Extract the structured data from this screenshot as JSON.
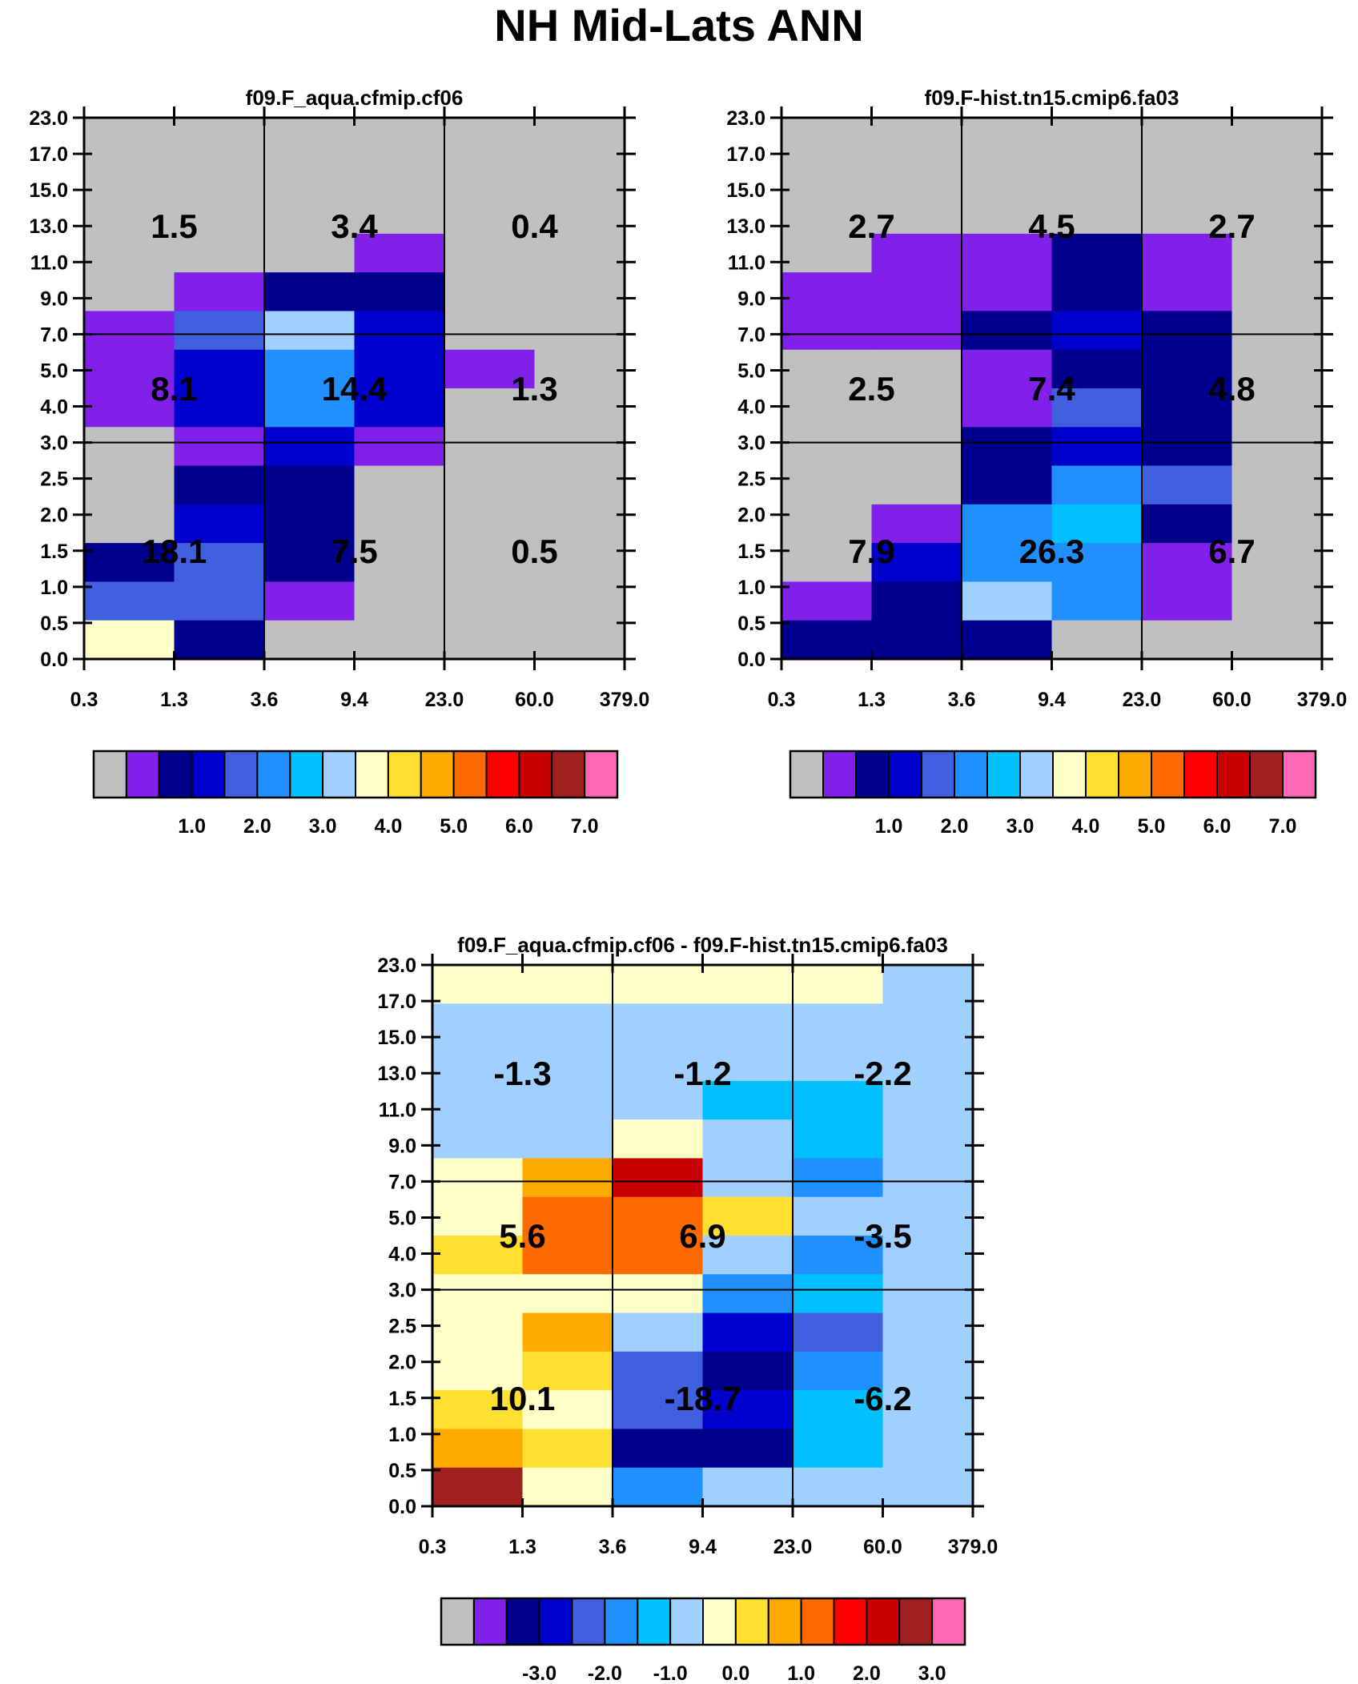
{
  "page_title": "NH Mid-Lats ANN",
  "colors": {
    "palette": [
      "#c0c0c0",
      "#8020e8",
      "#00008c",
      "#0000cc",
      "#4060e0",
      "#2090ff",
      "#00c0ff",
      "#a0d0ff",
      "#ffffc8",
      "#ffe030",
      "#ffaa00",
      "#ff6a00",
      "#ff0000",
      "#c80000",
      "#a02020",
      "#ff69b4"
    ],
    "line": "#000000"
  },
  "chart_data": [
    {
      "type": "heatmap",
      "title": "f09.F_aqua.cfmip.cf06",
      "xlabel": "",
      "ylabel": "",
      "x_tick_labels": [
        "0.3",
        "1.3",
        "3.6",
        "9.4",
        "23.0",
        "60.0",
        "379.0"
      ],
      "y_tick_labels": [
        "0.0",
        "0.5",
        "1.0",
        "1.5",
        "2.0",
        "2.5",
        "3.0",
        "4.0",
        "5.0",
        "7.0",
        "9.0",
        "11.0",
        "13.0",
        "15.0",
        "17.0",
        "23.0"
      ],
      "cell_color_index_rows_top_to_bottom": [
        [
          0,
          0,
          0,
          0,
          0,
          0
        ],
        [
          0,
          0,
          0,
          0,
          0,
          0
        ],
        [
          0,
          0,
          0,
          0,
          0,
          0
        ],
        [
          0,
          0,
          0,
          1,
          0,
          0
        ],
        [
          0,
          1,
          2,
          2,
          0,
          0
        ],
        [
          1,
          4,
          7,
          3,
          0,
          0
        ],
        [
          1,
          3,
          5,
          3,
          1,
          0
        ],
        [
          1,
          3,
          5,
          3,
          0,
          0
        ],
        [
          0,
          1,
          3,
          1,
          0,
          0
        ],
        [
          0,
          2,
          2,
          0,
          0,
          0
        ],
        [
          0,
          3,
          2,
          0,
          0,
          0
        ],
        [
          2,
          4,
          2,
          0,
          0,
          0
        ],
        [
          4,
          4,
          1,
          0,
          0,
          0
        ],
        [
          8,
          2,
          0,
          0,
          0,
          0
        ]
      ],
      "box_values_top_to_bottom": [
        [
          "1.5",
          "3.4",
          "0.4"
        ],
        [
          "8.1",
          "14.4",
          "1.3"
        ],
        [
          "18.1",
          "7.5",
          "0.5"
        ]
      ],
      "colorbar_tick_labels": [
        "1.0",
        "2.0",
        "3.0",
        "4.0",
        "5.0",
        "6.0",
        "7.0"
      ]
    },
    {
      "type": "heatmap",
      "title": "f09.F-hist.tn15.cmip6.fa03",
      "xlabel": "",
      "ylabel": "",
      "x_tick_labels": [
        "0.3",
        "1.3",
        "3.6",
        "9.4",
        "23.0",
        "60.0",
        "379.0"
      ],
      "y_tick_labels": [
        "0.0",
        "0.5",
        "1.0",
        "1.5",
        "2.0",
        "2.5",
        "3.0",
        "4.0",
        "5.0",
        "7.0",
        "9.0",
        "11.0",
        "13.0",
        "15.0",
        "17.0",
        "23.0"
      ],
      "cell_color_index_rows_top_to_bottom": [
        [
          0,
          0,
          0,
          0,
          0,
          0
        ],
        [
          0,
          0,
          0,
          0,
          0,
          0
        ],
        [
          0,
          0,
          0,
          0,
          0,
          0
        ],
        [
          0,
          1,
          1,
          2,
          1,
          0
        ],
        [
          1,
          1,
          1,
          2,
          1,
          0
        ],
        [
          1,
          1,
          2,
          3,
          2,
          0
        ],
        [
          0,
          0,
          1,
          2,
          2,
          0
        ],
        [
          0,
          0,
          1,
          4,
          2,
          0
        ],
        [
          0,
          0,
          2,
          3,
          2,
          0
        ],
        [
          0,
          0,
          2,
          5,
          4,
          0
        ],
        [
          0,
          1,
          5,
          6,
          2,
          0
        ],
        [
          0,
          3,
          5,
          5,
          1,
          0
        ],
        [
          1,
          2,
          7,
          5,
          1,
          0
        ],
        [
          2,
          2,
          2,
          0,
          0,
          0
        ]
      ],
      "box_values_top_to_bottom": [
        [
          "2.7",
          "4.5",
          "2.7"
        ],
        [
          "2.5",
          "7.4",
          "4.8"
        ],
        [
          "7.9",
          "26.3",
          "6.7"
        ]
      ],
      "colorbar_tick_labels": [
        "1.0",
        "2.0",
        "3.0",
        "4.0",
        "5.0",
        "6.0",
        "7.0"
      ]
    },
    {
      "type": "heatmap",
      "title": "f09.F_aqua.cfmip.cf06 - f09.F-hist.tn15.cmip6.fa03",
      "xlabel": "",
      "ylabel": "",
      "x_tick_labels": [
        "0.3",
        "1.3",
        "3.6",
        "9.4",
        "23.0",
        "60.0",
        "379.0"
      ],
      "y_tick_labels": [
        "0.0",
        "0.5",
        "1.0",
        "1.5",
        "2.0",
        "2.5",
        "3.0",
        "4.0",
        "5.0",
        "7.0",
        "9.0",
        "11.0",
        "13.0",
        "15.0",
        "17.0",
        "23.0"
      ],
      "cell_color_index_rows_top_to_bottom": [
        [
          8,
          8,
          8,
          8,
          8,
          7
        ],
        [
          7,
          7,
          7,
          7,
          7,
          7
        ],
        [
          7,
          7,
          7,
          7,
          7,
          7
        ],
        [
          7,
          7,
          7,
          6,
          6,
          7
        ],
        [
          7,
          7,
          8,
          7,
          6,
          7
        ],
        [
          8,
          10,
          13,
          7,
          5,
          7
        ],
        [
          8,
          11,
          11,
          9,
          7,
          7
        ],
        [
          9,
          11,
          11,
          7,
          5,
          7
        ],
        [
          8,
          8,
          8,
          5,
          6,
          7
        ],
        [
          8,
          10,
          7,
          3,
          4,
          7
        ],
        [
          8,
          9,
          4,
          2,
          5,
          7
        ],
        [
          9,
          8,
          4,
          3,
          6,
          7
        ],
        [
          10,
          9,
          2,
          2,
          6,
          7
        ],
        [
          14,
          8,
          5,
          7,
          7,
          7
        ]
      ],
      "box_values_top_to_bottom": [
        [
          "-1.3",
          "-1.2",
          "-2.2"
        ],
        [
          "5.6",
          "6.9",
          "-3.5"
        ],
        [
          "10.1",
          "-18.7",
          "-6.2"
        ]
      ],
      "colorbar_tick_labels": [
        "-3.0",
        "-2.0",
        "-1.0",
        "0.0",
        "1.0",
        "2.0",
        "3.0"
      ]
    }
  ]
}
